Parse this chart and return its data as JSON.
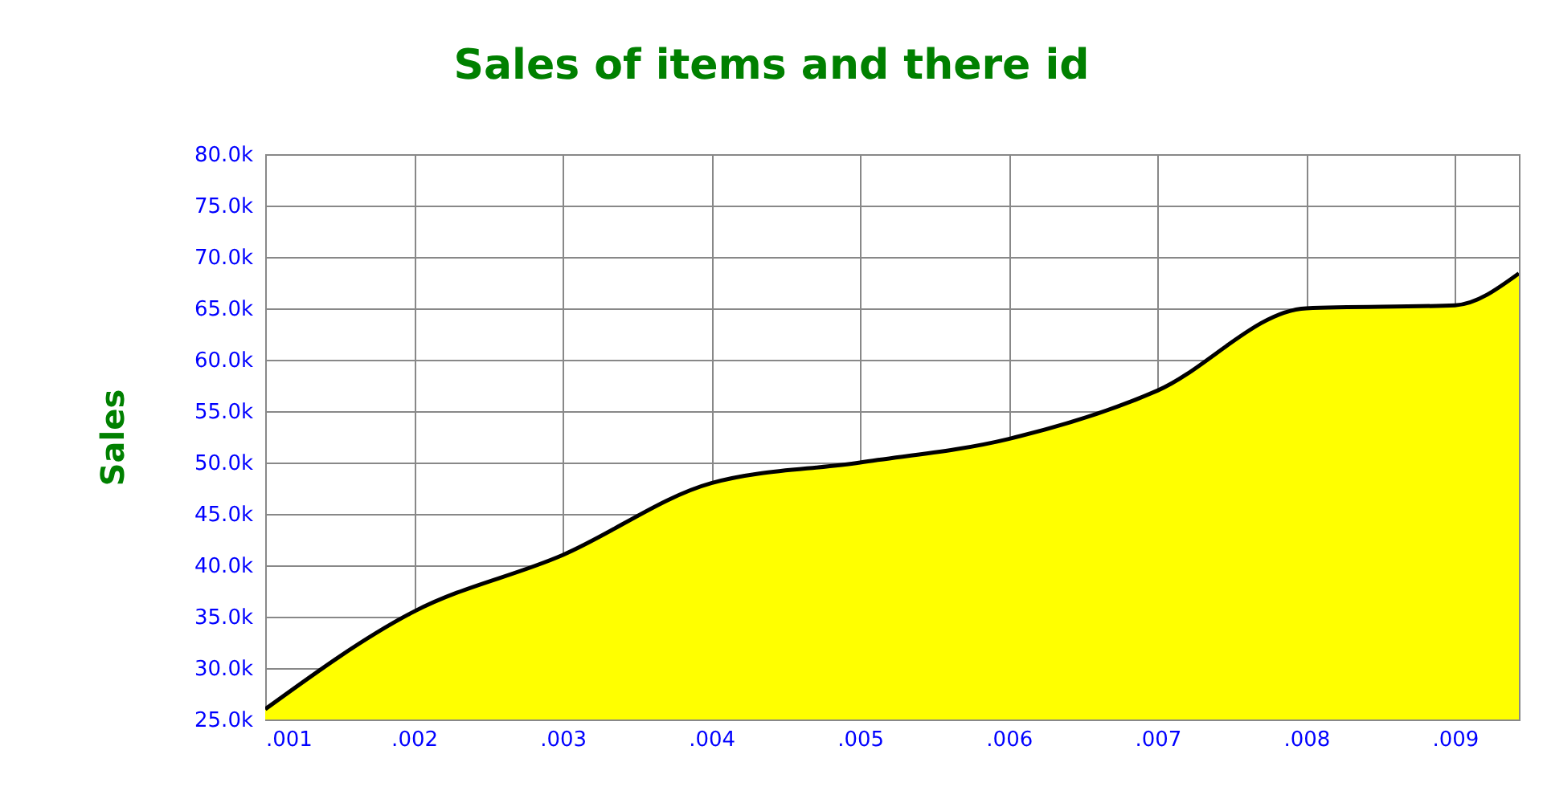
{
  "chart_data": {
    "type": "area",
    "title": "Sales of items and there id",
    "ylabel": "Sales",
    "x": [
      0.001,
      0.002,
      0.003,
      0.004,
      0.005,
      0.006,
      0.007,
      0.008,
      0.009,
      0.00943
    ],
    "series": [
      {
        "color": "#ffff00",
        "values": [
          26000,
          35500,
          41000,
          48000,
          50000,
          52300,
          57000,
          65000,
          65300,
          68400
        ]
      }
    ],
    "xlim": [
      0.001,
      0.00943
    ],
    "xticks": [
      {
        "value": 0.001,
        "label": ".001"
      },
      {
        "value": 0.002,
        "label": ".002"
      },
      {
        "value": 0.003,
        "label": ".003"
      },
      {
        "value": 0.004,
        "label": ".004"
      },
      {
        "value": 0.005,
        "label": ".005"
      },
      {
        "value": 0.006,
        "label": ".006"
      },
      {
        "value": 0.007,
        "label": ".007"
      },
      {
        "value": 0.008,
        "label": ".008"
      },
      {
        "value": 0.009,
        "label": ".009"
      }
    ],
    "ylim": [
      25000,
      80000
    ],
    "yticks": [
      {
        "value": 25000,
        "label": "25.0k"
      },
      {
        "value": 30000,
        "label": "30.0k"
      },
      {
        "value": 35000,
        "label": "35.0k"
      },
      {
        "value": 40000,
        "label": "40.0k"
      },
      {
        "value": 45000,
        "label": "45.0k"
      },
      {
        "value": 50000,
        "label": "50.0k"
      },
      {
        "value": 55000,
        "label": "55.0k"
      },
      {
        "value": 60000,
        "label": "60.0k"
      },
      {
        "value": 65000,
        "label": "65.0k"
      },
      {
        "value": 70000,
        "label": "70.0k"
      },
      {
        "value": 75000,
        "label": "75.0k"
      },
      {
        "value": 80000,
        "label": "80.0k"
      }
    ],
    "grid": true
  }
}
